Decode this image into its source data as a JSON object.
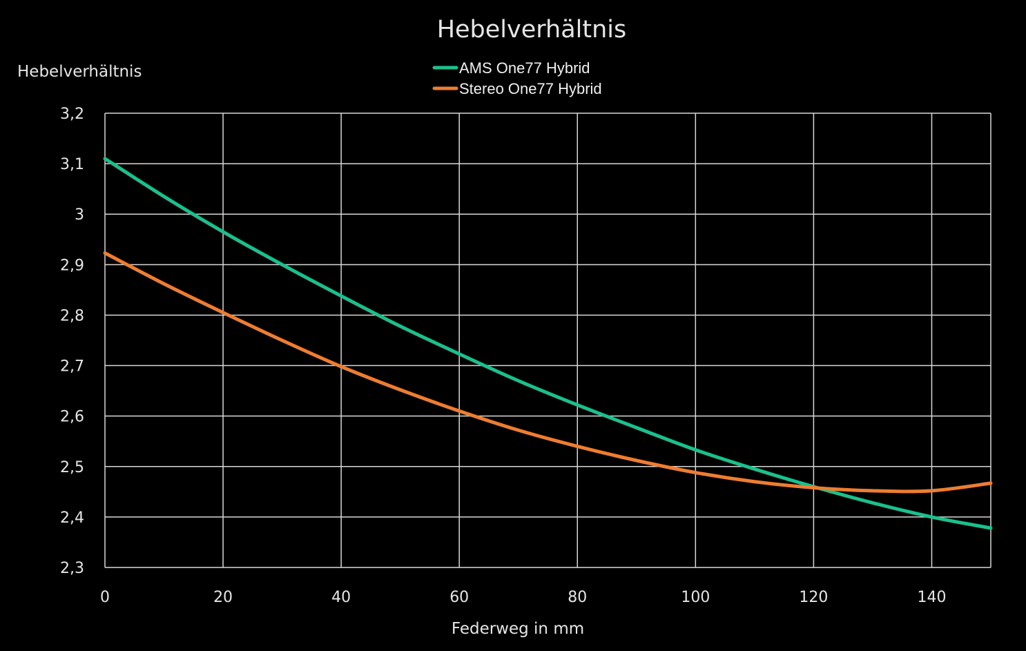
{
  "chart_data": {
    "type": "line",
    "title": "Hebelverhältnis",
    "xlabel": "Federweg in mm",
    "ylabel": "Hebelverhältnis",
    "xlim": [
      0,
      150
    ],
    "ylim": [
      2.3,
      3.2
    ],
    "grid": true,
    "legend_position": "top-center",
    "x_ticks": [
      0,
      20,
      40,
      60,
      80,
      100,
      120,
      140
    ],
    "x_tick_labels": [
      "0",
      "20",
      "40",
      "60",
      "80",
      "100",
      "120",
      "140"
    ],
    "y_ticks": [
      2.3,
      2.4,
      2.5,
      2.6,
      2.7,
      2.8,
      2.9,
      3.0,
      3.1,
      3.2
    ],
    "y_tick_labels": [
      "2,3",
      "2,4",
      "2,5",
      "2,6",
      "2,7",
      "2,8",
      "2,9",
      "3",
      "3,1",
      "3,2"
    ],
    "x": [
      0,
      10,
      20,
      30,
      40,
      50,
      60,
      70,
      80,
      90,
      100,
      110,
      120,
      130,
      140,
      150
    ],
    "series": [
      {
        "name": "AMS One77 Hybrid",
        "color": "#1ac08e",
        "values": [
          3.11,
          3.035,
          2.965,
          2.9,
          2.838,
          2.778,
          2.723,
          2.67,
          2.622,
          2.577,
          2.533,
          2.495,
          2.46,
          2.428,
          2.4,
          2.378
        ]
      },
      {
        "name": "Stereo One77 Hybrid",
        "color": "#ee7d31",
        "values": [
          2.923,
          2.862,
          2.805,
          2.75,
          2.698,
          2.652,
          2.61,
          2.572,
          2.54,
          2.512,
          2.488,
          2.47,
          2.458,
          2.452,
          2.452,
          2.467
        ]
      }
    ]
  }
}
